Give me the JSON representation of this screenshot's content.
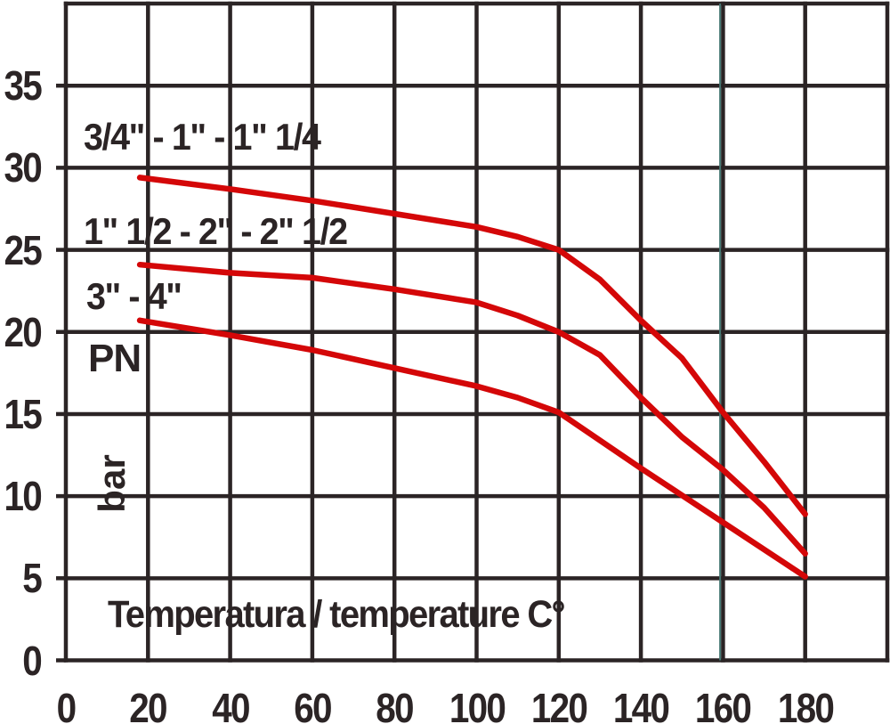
{
  "chart_data": {
    "type": "line",
    "xlabel": "Temperatura / temperature C°",
    "ylabel_unit_top": "PN",
    "ylabel_unit_bottom": "bar",
    "xlim": [
      0,
      200
    ],
    "ylim": [
      0,
      40
    ],
    "x_grid_step": 20,
    "y_grid_step": 5,
    "grid": true,
    "x_ticks": [
      0,
      20,
      40,
      60,
      80,
      100,
      120,
      140,
      160,
      180
    ],
    "y_ticks": [
      35,
      30,
      25,
      20,
      15,
      10,
      5,
      0
    ],
    "grid_color": "#2b2425",
    "curve_color": "#d40708",
    "accent_tick_x": 160,
    "accent_tick_color": "#457672",
    "legend_position": "inline-left",
    "series": [
      {
        "name": "3/4\" - 1\" - 1\" 1/4",
        "points": [
          [
            18,
            29.4
          ],
          [
            40,
            28.7
          ],
          [
            60,
            28.0
          ],
          [
            80,
            27.2
          ],
          [
            100,
            26.4
          ],
          [
            110,
            25.8
          ],
          [
            120,
            25.0
          ],
          [
            130,
            23.2
          ],
          [
            140,
            20.7
          ],
          [
            150,
            18.4
          ],
          [
            160,
            15.1
          ],
          [
            170,
            12.1
          ],
          [
            180,
            8.9
          ]
        ]
      },
      {
        "name": "1\" 1/2 - 2\" - 2\" 1/2",
        "points": [
          [
            18,
            24.1
          ],
          [
            40,
            23.6
          ],
          [
            60,
            23.3
          ],
          [
            80,
            22.6
          ],
          [
            100,
            21.8
          ],
          [
            110,
            21.0
          ],
          [
            120,
            20.0
          ],
          [
            130,
            18.6
          ],
          [
            140,
            16.0
          ],
          [
            150,
            13.6
          ],
          [
            160,
            11.6
          ],
          [
            170,
            9.3
          ],
          [
            180,
            6.5
          ]
        ]
      },
      {
        "name": "3\" - 4\"",
        "points": [
          [
            18,
            20.7
          ],
          [
            40,
            19.8
          ],
          [
            60,
            18.9
          ],
          [
            80,
            17.8
          ],
          [
            100,
            16.7
          ],
          [
            110,
            16.0
          ],
          [
            120,
            15.1
          ],
          [
            140,
            11.7
          ],
          [
            160,
            8.4
          ],
          [
            180,
            5.1
          ]
        ]
      }
    ]
  }
}
